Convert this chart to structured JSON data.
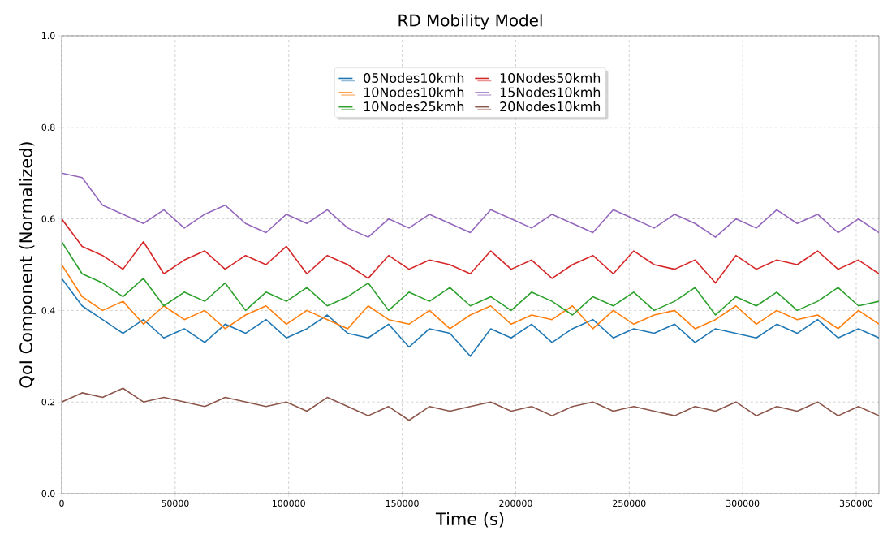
{
  "chart_data": {
    "type": "line",
    "title": "RD Mobility Model",
    "xlabel": "Time (s)",
    "ylabel": "QoI Component (Normalized)",
    "x": [
      0,
      9000,
      18000,
      27000,
      36000,
      45000,
      54000,
      63000,
      72000,
      81000,
      90000,
      99000,
      108000,
      117000,
      126000,
      135000,
      144000,
      153000,
      162000,
      171000,
      180000,
      189000,
      198000,
      207000,
      216000,
      225000,
      234000,
      243000,
      252000,
      261000,
      270000,
      279000,
      288000,
      297000,
      306000,
      315000,
      324000,
      333000,
      342000,
      351000,
      360000
    ],
    "series": [
      {
        "name": "05Nodes10kmh",
        "color": "#1f77b4",
        "values": [
          0.47,
          0.41,
          0.38,
          0.35,
          0.38,
          0.34,
          0.36,
          0.33,
          0.37,
          0.35,
          0.38,
          0.34,
          0.36,
          0.39,
          0.35,
          0.34,
          0.37,
          0.32,
          0.36,
          0.35,
          0.3,
          0.36,
          0.34,
          0.37,
          0.33,
          0.36,
          0.38,
          0.34,
          0.36,
          0.35,
          0.37,
          0.33,
          0.36,
          0.35,
          0.34,
          0.37,
          0.35,
          0.38,
          0.34,
          0.36,
          0.34
        ]
      },
      {
        "name": "10Nodes10kmh",
        "color": "#ff7f0e",
        "values": [
          0.5,
          0.43,
          0.4,
          0.42,
          0.37,
          0.41,
          0.38,
          0.4,
          0.36,
          0.39,
          0.41,
          0.37,
          0.4,
          0.38,
          0.36,
          0.41,
          0.38,
          0.37,
          0.4,
          0.36,
          0.39,
          0.41,
          0.37,
          0.39,
          0.38,
          0.41,
          0.36,
          0.4,
          0.37,
          0.39,
          0.4,
          0.36,
          0.38,
          0.41,
          0.37,
          0.4,
          0.38,
          0.39,
          0.36,
          0.4,
          0.37
        ]
      },
      {
        "name": "10Nodes25kmh",
        "color": "#2ca02c",
        "values": [
          0.55,
          0.48,
          0.46,
          0.43,
          0.47,
          0.41,
          0.44,
          0.42,
          0.46,
          0.4,
          0.44,
          0.42,
          0.45,
          0.41,
          0.43,
          0.46,
          0.4,
          0.44,
          0.42,
          0.45,
          0.41,
          0.43,
          0.4,
          0.44,
          0.42,
          0.39,
          0.43,
          0.41,
          0.44,
          0.4,
          0.42,
          0.45,
          0.39,
          0.43,
          0.41,
          0.44,
          0.4,
          0.42,
          0.45,
          0.41,
          0.42
        ]
      },
      {
        "name": "10Nodes50kmh",
        "color": "#d62728",
        "values": [
          0.6,
          0.54,
          0.52,
          0.49,
          0.55,
          0.48,
          0.51,
          0.53,
          0.49,
          0.52,
          0.5,
          0.54,
          0.48,
          0.52,
          0.5,
          0.47,
          0.52,
          0.49,
          0.51,
          0.5,
          0.48,
          0.53,
          0.49,
          0.51,
          0.47,
          0.5,
          0.52,
          0.48,
          0.53,
          0.5,
          0.49,
          0.51,
          0.46,
          0.52,
          0.49,
          0.51,
          0.5,
          0.53,
          0.49,
          0.51,
          0.48
        ]
      },
      {
        "name": "15Nodes10kmh",
        "color": "#9467bd",
        "values": [
          0.7,
          0.69,
          0.63,
          0.61,
          0.59,
          0.62,
          0.58,
          0.61,
          0.63,
          0.59,
          0.57,
          0.61,
          0.59,
          0.62,
          0.58,
          0.56,
          0.6,
          0.58,
          0.61,
          0.59,
          0.57,
          0.62,
          0.6,
          0.58,
          0.61,
          0.59,
          0.57,
          0.62,
          0.6,
          0.58,
          0.61,
          0.59,
          0.56,
          0.6,
          0.58,
          0.62,
          0.59,
          0.61,
          0.57,
          0.6,
          0.57
        ]
      },
      {
        "name": "20Nodes10kmh",
        "color": "#8c564b",
        "values": [
          0.2,
          0.22,
          0.21,
          0.23,
          0.2,
          0.21,
          0.2,
          0.19,
          0.21,
          0.2,
          0.19,
          0.2,
          0.18,
          0.21,
          0.19,
          0.17,
          0.19,
          0.16,
          0.19,
          0.18,
          0.19,
          0.2,
          0.18,
          0.19,
          0.17,
          0.19,
          0.2,
          0.18,
          0.19,
          0.18,
          0.17,
          0.19,
          0.18,
          0.2,
          0.17,
          0.19,
          0.18,
          0.2,
          0.17,
          0.19,
          0.17
        ]
      }
    ],
    "xlim": [
      0,
      360000
    ],
    "ylim": [
      0.0,
      1.0
    ],
    "xticks": [
      0,
      50000,
      100000,
      150000,
      200000,
      250000,
      300000,
      350000
    ],
    "yticks": [
      {
        "value": 0.0,
        "label": "0.0"
      },
      {
        "value": 0.2,
        "label": "0.2"
      },
      {
        "value": 0.4,
        "label": "0.4"
      },
      {
        "value": 0.6,
        "label": "0.6"
      },
      {
        "value": 0.8,
        "label": "0.8"
      },
      {
        "value": 1.0,
        "label": "1.0"
      }
    ],
    "grid": true,
    "legend": "top",
    "line_style": "solid",
    "marker": "none"
  }
}
